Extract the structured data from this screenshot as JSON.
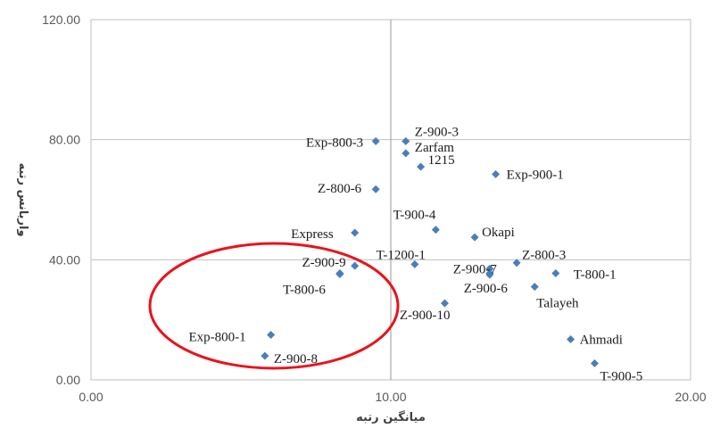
{
  "chart_data": {
    "type": "scatter",
    "title": "",
    "xlabel": "میانگین رتبه",
    "ylabel": "واریانس رتبه",
    "xlim": [
      0,
      20
    ],
    "ylim": [
      0,
      120
    ],
    "x_ticks": [
      "0.00",
      "10.00",
      "20.00"
    ],
    "y_ticks": [
      "0.00",
      "40.00",
      "80.00",
      "120.00"
    ],
    "grid": "reference lines at x=10 and y=40 (plus y=80)",
    "marker_color": "#4a7ebb",
    "highlight_color": "#e8141c",
    "highlight": "ellipse around low-mean genotypes",
    "points": [
      {
        "label": "Exp-800-3",
        "x": 9.5,
        "y": 79.5
      },
      {
        "label": "Z-900-3",
        "x": 10.5,
        "y": 79.5
      },
      {
        "label": "Zarfam",
        "x": 10.5,
        "y": 75.5
      },
      {
        "label": "1215",
        "x": 11.0,
        "y": 71.0
      },
      {
        "label": "Exp-900-1",
        "x": 13.5,
        "y": 68.5
      },
      {
        "label": "Z-800-6",
        "x": 9.5,
        "y": 63.5
      },
      {
        "label": "T-900-4",
        "x": 11.5,
        "y": 50.0
      },
      {
        "label": "Express",
        "x": 8.8,
        "y": 49.0
      },
      {
        "label": "Okapi",
        "x": 12.8,
        "y": 47.5
      },
      {
        "label": "Z-800-3",
        "x": 14.2,
        "y": 39.0
      },
      {
        "label": "T-1200-1",
        "x": 10.8,
        "y": 38.5
      },
      {
        "label": "Z-900-9",
        "x": 8.8,
        "y": 38.0
      },
      {
        "label": "Z-900-7",
        "x": 13.3,
        "y": 37.0
      },
      {
        "label": "T-800-1",
        "x": 15.5,
        "y": 35.5
      },
      {
        "label": "",
        "x": 8.3,
        "y": 35.5
      },
      {
        "label": "",
        "x": 13.3,
        "y": 35.5
      },
      {
        "label": "Z-900-6",
        "x": 13.3,
        "y": 35.0
      },
      {
        "label": "Talayeh",
        "x": 14.8,
        "y": 31.0
      },
      {
        "label": "T-800-6",
        "x": 8.3,
        "y": 35.2
      },
      {
        "label": "Z-900-10",
        "x": 11.8,
        "y": 25.5
      },
      {
        "label": "Exp-800-1",
        "x": 6.0,
        "y": 15.0
      },
      {
        "label": "Ahmadi",
        "x": 16.0,
        "y": 13.5
      },
      {
        "label": "Z-900-8",
        "x": 5.8,
        "y": 8.0
      },
      {
        "label": "T-900-5",
        "x": 16.8,
        "y": 5.5
      }
    ]
  }
}
